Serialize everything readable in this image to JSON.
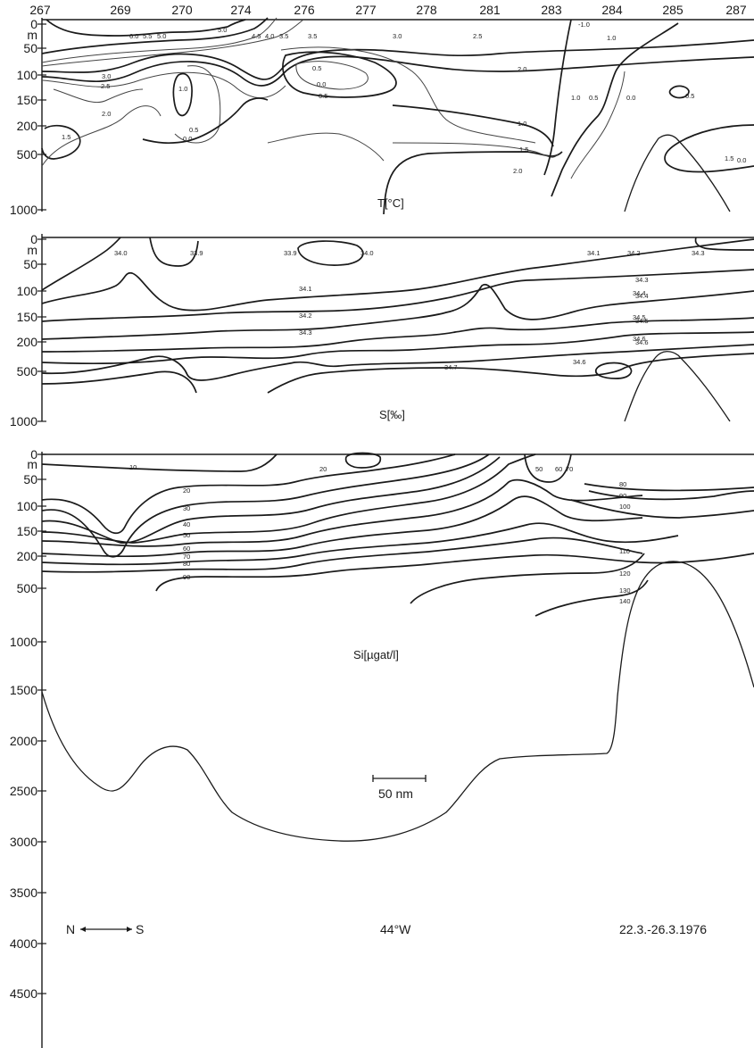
{
  "section": {
    "longitude": "44°W",
    "date_range": "22.3.-26.3.1976",
    "direction_left": "N",
    "direction_right": "S",
    "scale_bar": "50 nm",
    "stations": [
      "267",
      "269",
      "270",
      "274",
      "276",
      "277",
      "278",
      "281",
      "283",
      "284",
      "285",
      "287"
    ]
  },
  "chart_data": [
    {
      "type": "contour",
      "title": "T[°C]",
      "y_ticks": [
        "0",
        "m",
        "50",
        "100",
        "150",
        "200",
        "500",
        "1000"
      ],
      "contour_labels": [
        "6.0",
        "5.5",
        "5.0",
        "5.0",
        "4.5",
        "4.0",
        "3.5",
        "3.0",
        "2.5",
        "2.0",
        "1.5",
        "1.0",
        "0.5",
        "0.0",
        "3.5",
        "3.0",
        "2.5",
        "2.0",
        "1.0",
        "1.5",
        "2.0",
        "0.5",
        "0.0",
        "0.5",
        "1.0",
        "0.5",
        "0.0",
        "0.5",
        "-1.0",
        "1.0",
        "1.5",
        "0.0"
      ]
    },
    {
      "type": "contour",
      "title": "S[‰]",
      "y_ticks": [
        "0",
        "m",
        "50",
        "100",
        "150",
        "200",
        "500",
        "1000"
      ],
      "contour_labels": [
        "34.0",
        "33.9",
        "33.9",
        "34.0",
        "34.1",
        "34.2",
        "34.3",
        "34.1",
        "34.2",
        "34.3",
        "34.4",
        "34.5",
        "34.6",
        "34.7",
        "34.3",
        "34.4",
        "34.5",
        "34.6",
        "34.6"
      ]
    },
    {
      "type": "contour",
      "title": "Si[µgat/l]",
      "y_ticks": [
        "0",
        "m",
        "50",
        "100",
        "150",
        "200",
        "500",
        "1000",
        "1500",
        "2000",
        "2500",
        "3000",
        "3500",
        "4000",
        "4500"
      ],
      "contour_labels": [
        "10",
        "20",
        "30",
        "40",
        "50",
        "60",
        "70",
        "80",
        "90",
        "20",
        "50",
        "60",
        "70",
        "80",
        "90",
        "100",
        "110",
        "120",
        "130",
        "140"
      ]
    }
  ]
}
